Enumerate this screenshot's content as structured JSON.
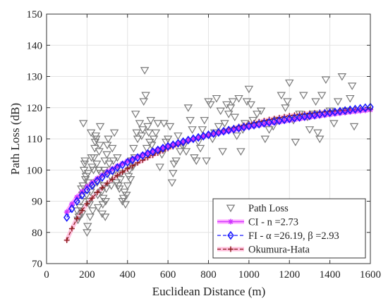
{
  "chart_data": {
    "type": "scatter",
    "xlabel": "Euclidean Distance (m)",
    "ylabel": "Path Loss (dB)",
    "xlim": [
      0,
      1600
    ],
    "ylim": [
      70,
      150
    ],
    "xticks": [
      0,
      200,
      400,
      600,
      800,
      1000,
      1200,
      1400,
      1600
    ],
    "yticks": [
      70,
      80,
      90,
      100,
      110,
      120,
      130,
      140,
      150
    ],
    "grid": true,
    "legend_position": "bottom-right",
    "legend": [
      "Path Loss",
      "CI - n =2.73",
      "FI - α =26.19, β =2.93",
      "Okumura-Hata"
    ],
    "colors": {
      "path_loss": "#7a7a7a",
      "ci": "#cc33ff",
      "ci_band": "#ff99ff",
      "fi": "#1a1aff",
      "okumura": "#8b1a1a",
      "okumura_band": "#ffb6d9",
      "grid": "#e3e3e3",
      "axes": "#333333"
    },
    "series": [
      {
        "name": "Path Loss",
        "kind": "scatter",
        "marker": "triangle-down",
        "points": [
          [
            150,
            87
          ],
          [
            155,
            84
          ],
          [
            160,
            85
          ],
          [
            165,
            88
          ],
          [
            170,
            90
          ],
          [
            172,
            94
          ],
          [
            175,
            86
          ],
          [
            178,
            92
          ],
          [
            180,
            95
          ],
          [
            182,
            115
          ],
          [
            185,
            100
          ],
          [
            188,
            102
          ],
          [
            190,
            103
          ],
          [
            192,
            97
          ],
          [
            195,
            98
          ],
          [
            198,
            92
          ],
          [
            200,
            80
          ],
          [
            203,
            82
          ],
          [
            205,
            99
          ],
          [
            207,
            96
          ],
          [
            210,
            90
          ],
          [
            212,
            89
          ],
          [
            215,
            85
          ],
          [
            218,
            93
          ],
          [
            220,
            112
          ],
          [
            222,
            104
          ],
          [
            225,
            101
          ],
          [
            228,
            87
          ],
          [
            230,
            95
          ],
          [
            232,
            100
          ],
          [
            235,
            104
          ],
          [
            238,
            107
          ],
          [
            240,
            109
          ],
          [
            243,
            111
          ],
          [
            245,
            110
          ],
          [
            248,
            102
          ],
          [
            250,
            96
          ],
          [
            253,
            92
          ],
          [
            255,
            88
          ],
          [
            258,
            100
          ],
          [
            260,
            106
          ],
          [
            263,
            108
          ],
          [
            265,
            114
          ],
          [
            268,
            99
          ],
          [
            270,
            97
          ],
          [
            272,
            93
          ],
          [
            275,
            86
          ],
          [
            278,
            89
          ],
          [
            280,
            91
          ],
          [
            283,
            95
          ],
          [
            285,
            100
          ],
          [
            288,
            103
          ],
          [
            290,
            85
          ],
          [
            292,
            90
          ],
          [
            295,
            94
          ],
          [
            298,
            105
          ],
          [
            300,
            108
          ],
          [
            305,
            110
          ],
          [
            310,
            102
          ],
          [
            315,
            98
          ],
          [
            320,
            95
          ],
          [
            325,
            107
          ],
          [
            330,
            103
          ],
          [
            335,
            112
          ],
          [
            340,
            100
          ],
          [
            345,
            96
          ],
          [
            350,
            104
          ],
          [
            355,
            95
          ],
          [
            360,
            94
          ],
          [
            365,
            97
          ],
          [
            370,
            99
          ],
          [
            375,
            90
          ],
          [
            380,
            91
          ],
          [
            385,
            93
          ],
          [
            390,
            89
          ],
          [
            395,
            92
          ],
          [
            400,
            95
          ],
          [
            405,
            98
          ],
          [
            410,
            100
          ],
          [
            415,
            97
          ],
          [
            420,
            103
          ],
          [
            425,
            101
          ],
          [
            430,
            107
          ],
          [
            435,
            104
          ],
          [
            440,
            118
          ],
          [
            445,
            112
          ],
          [
            450,
            110
          ],
          [
            460,
            115
          ],
          [
            470,
            111
          ],
          [
            475,
            113
          ],
          [
            480,
            122
          ],
          [
            485,
            132
          ],
          [
            490,
            124
          ],
          [
            495,
            107
          ],
          [
            500,
            114
          ],
          [
            505,
            112
          ],
          [
            510,
            109
          ],
          [
            515,
            116
          ],
          [
            520,
            108
          ],
          [
            530,
            110
          ],
          [
            540,
            112
          ],
          [
            550,
            115
          ],
          [
            560,
            101
          ],
          [
            570,
            105
          ],
          [
            580,
            115
          ],
          [
            590,
            109
          ],
          [
            600,
            110
          ],
          [
            610,
            114
          ],
          [
            620,
            96
          ],
          [
            625,
            99
          ],
          [
            630,
            102
          ],
          [
            640,
            103
          ],
          [
            650,
            111
          ],
          [
            660,
            106
          ],
          [
            670,
            108
          ],
          [
            680,
            108
          ],
          [
            690,
            106
          ],
          [
            700,
            120
          ],
          [
            710,
            116
          ],
          [
            720,
            113
          ],
          [
            730,
            104
          ],
          [
            740,
            103
          ],
          [
            750,
            109
          ],
          [
            760,
            107
          ],
          [
            770,
            113
          ],
          [
            780,
            116
          ],
          [
            790,
            103
          ],
          [
            800,
            122
          ],
          [
            810,
            121
          ],
          [
            820,
            110
          ],
          [
            830,
            112
          ],
          [
            840,
            123
          ],
          [
            850,
            114
          ],
          [
            860,
            119
          ],
          [
            870,
            106
          ],
          [
            880,
            115
          ],
          [
            890,
            121
          ],
          [
            900,
            118
          ],
          [
            910,
            120
          ],
          [
            920,
            122
          ],
          [
            930,
            117
          ],
          [
            940,
            111
          ],
          [
            950,
            123
          ],
          [
            960,
            106
          ],
          [
            970,
            113
          ],
          [
            980,
            115
          ],
          [
            990,
            122
          ],
          [
            1000,
            126
          ],
          [
            1010,
            121
          ],
          [
            1020,
            116
          ],
          [
            1040,
            118
          ],
          [
            1060,
            119
          ],
          [
            1080,
            110
          ],
          [
            1100,
            113
          ],
          [
            1120,
            114
          ],
          [
            1140,
            116
          ],
          [
            1160,
            124
          ],
          [
            1180,
            120
          ],
          [
            1190,
            122
          ],
          [
            1200,
            128
          ],
          [
            1220,
            116
          ],
          [
            1230,
            109
          ],
          [
            1250,
            118
          ],
          [
            1270,
            124
          ],
          [
            1290,
            117
          ],
          [
            1300,
            113
          ],
          [
            1320,
            118
          ],
          [
            1330,
            122
          ],
          [
            1340,
            112
          ],
          [
            1350,
            110
          ],
          [
            1360,
            124
          ],
          [
            1380,
            129
          ],
          [
            1400,
            119
          ],
          [
            1420,
            115
          ],
          [
            1440,
            122
          ],
          [
            1460,
            130
          ],
          [
            1480,
            119
          ],
          [
            1500,
            123
          ],
          [
            1510,
            127
          ],
          [
            1520,
            114
          ]
        ]
      },
      {
        "name": "CI - n =2.73",
        "kind": "line",
        "marker": "asterisk",
        "x": [
          100,
          125,
          150,
          175,
          200,
          250,
          300,
          350,
          400,
          450,
          500,
          600,
          700,
          800,
          900,
          1000,
          1100,
          1200,
          1300,
          1400,
          1500,
          1600
        ],
        "y": [
          86.5,
          89.1,
          91.3,
          93.1,
          94.7,
          97.3,
          99.5,
          101.3,
          102.9,
          104.3,
          105.5,
          107.7,
          109.5,
          111.1,
          112.5,
          113.8,
          114.9,
          115.9,
          116.9,
          117.8,
          118.6,
          119.3
        ]
      },
      {
        "name": "FI - α =26.19, β =2.93",
        "kind": "line",
        "marker": "diamond",
        "x": [
          100,
          125,
          150,
          175,
          200,
          250,
          300,
          350,
          400,
          450,
          500,
          600,
          700,
          800,
          900,
          1000,
          1100,
          1200,
          1300,
          1400,
          1500,
          1600
        ],
        "y": [
          84.8,
          87.6,
          90.0,
          91.9,
          93.6,
          96.5,
          98.8,
          100.8,
          102.5,
          104.0,
          105.3,
          107.6,
          109.6,
          111.3,
          112.8,
          114.1,
          115.3,
          116.4,
          117.4,
          118.4,
          119.3,
          120.2
        ]
      },
      {
        "name": "Okumura-Hata",
        "kind": "line",
        "marker": "plus",
        "x": [
          100,
          125,
          150,
          175,
          200,
          250,
          300,
          350,
          400,
          450,
          500,
          600,
          700,
          800,
          900,
          1000,
          1100,
          1200,
          1300,
          1400,
          1500,
          1600
        ],
        "y": [
          77.5,
          81.2,
          84.4,
          87.0,
          89.2,
          92.8,
          95.8,
          98.3,
          100.4,
          102.3,
          104.0,
          106.9,
          109.3,
          111.3,
          113.1,
          114.8,
          116.2,
          117.4,
          118.2,
          118.8,
          119.2,
          119.5
        ]
      }
    ]
  }
}
